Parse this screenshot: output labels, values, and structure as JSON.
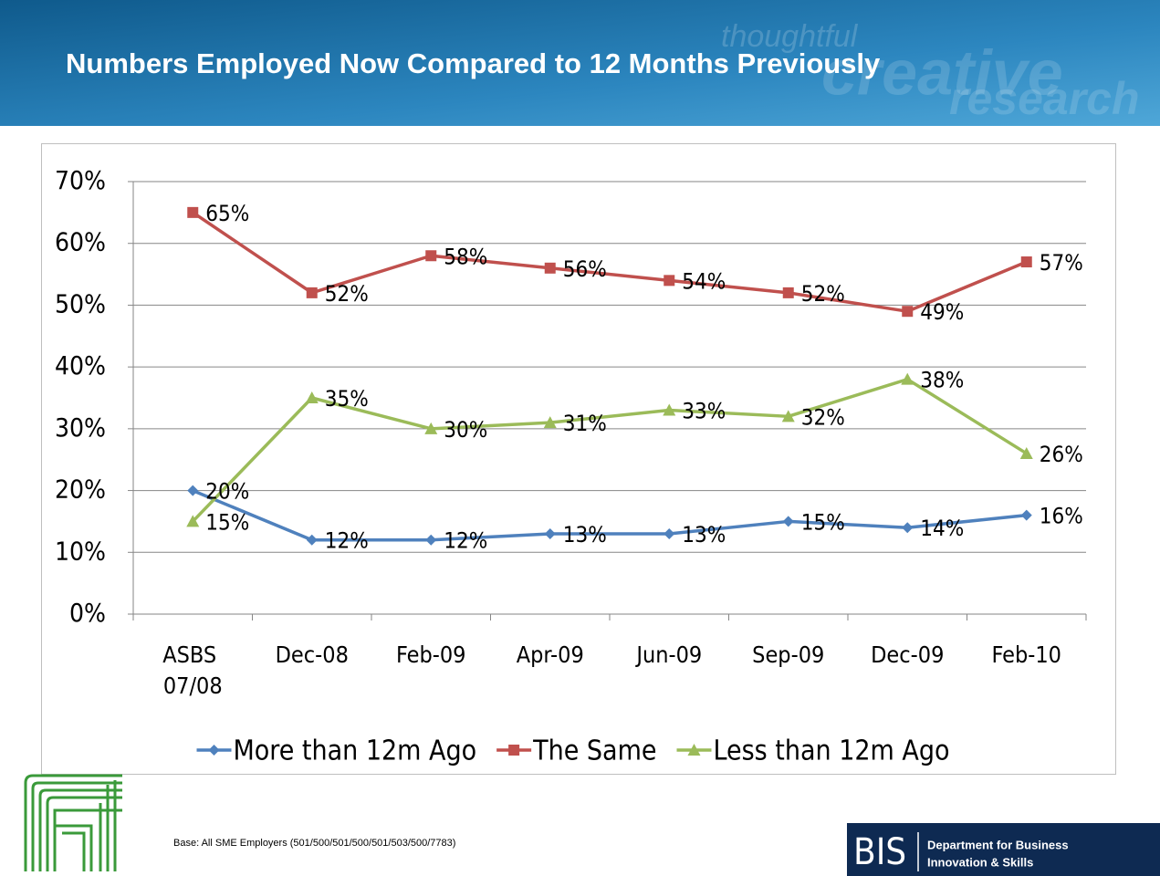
{
  "header": {
    "title": "Numbers Employed Now Compared to 12 Months Previously",
    "watermark": [
      "thoughtful",
      "creative",
      "research"
    ]
  },
  "chart_data": {
    "type": "line",
    "categories": [
      "ASBS 07/08",
      "Dec-08",
      "Feb-09",
      "Apr-09",
      "Jun-09",
      "Sep-09",
      "Dec-09",
      "Feb-10"
    ],
    "series": [
      {
        "name": "More than 12m Ago",
        "color": "#4f81bd",
        "marker": "diamond",
        "values": [
          20,
          12,
          12,
          13,
          13,
          15,
          14,
          16
        ],
        "value_labels": [
          "20%",
          "12%",
          "12%",
          "13%",
          "13%",
          "15%",
          "14%",
          "16%"
        ]
      },
      {
        "name": "The Same",
        "color": "#c0504d",
        "marker": "square",
        "values": [
          65,
          52,
          58,
          56,
          54,
          52,
          49,
          57
        ],
        "value_labels": [
          "65%",
          "52%",
          "58%",
          "56%",
          "54%",
          "52%",
          "49%",
          "57%"
        ]
      },
      {
        "name": "Less than 12m Ago",
        "color": "#9bbb59",
        "marker": "triangle",
        "values": [
          15,
          35,
          30,
          31,
          33,
          32,
          38,
          26
        ],
        "value_labels": [
          "15%",
          "35%",
          "30%",
          "31%",
          "33%",
          "32%",
          "38%",
          "26%"
        ]
      }
    ],
    "ylim": [
      0,
      70
    ],
    "yticks": [
      {
        "value": 0,
        "label": "0%"
      },
      {
        "value": 10,
        "label": "10%"
      },
      {
        "value": 20,
        "label": "20%"
      },
      {
        "value": 30,
        "label": "30%"
      },
      {
        "value": 40,
        "label": "40%"
      },
      {
        "value": 50,
        "label": "50%"
      },
      {
        "value": 60,
        "label": "60%"
      },
      {
        "value": 70,
        "label": "70%"
      }
    ],
    "grid": true,
    "legend": "bottom"
  },
  "footer": {
    "base": "Base: All SME Employers (501/500/501/500/501/503/500/7783)",
    "logo": {
      "mark": "BIS",
      "line1": "Department for Business",
      "line2": "Innovation & Skills"
    }
  }
}
